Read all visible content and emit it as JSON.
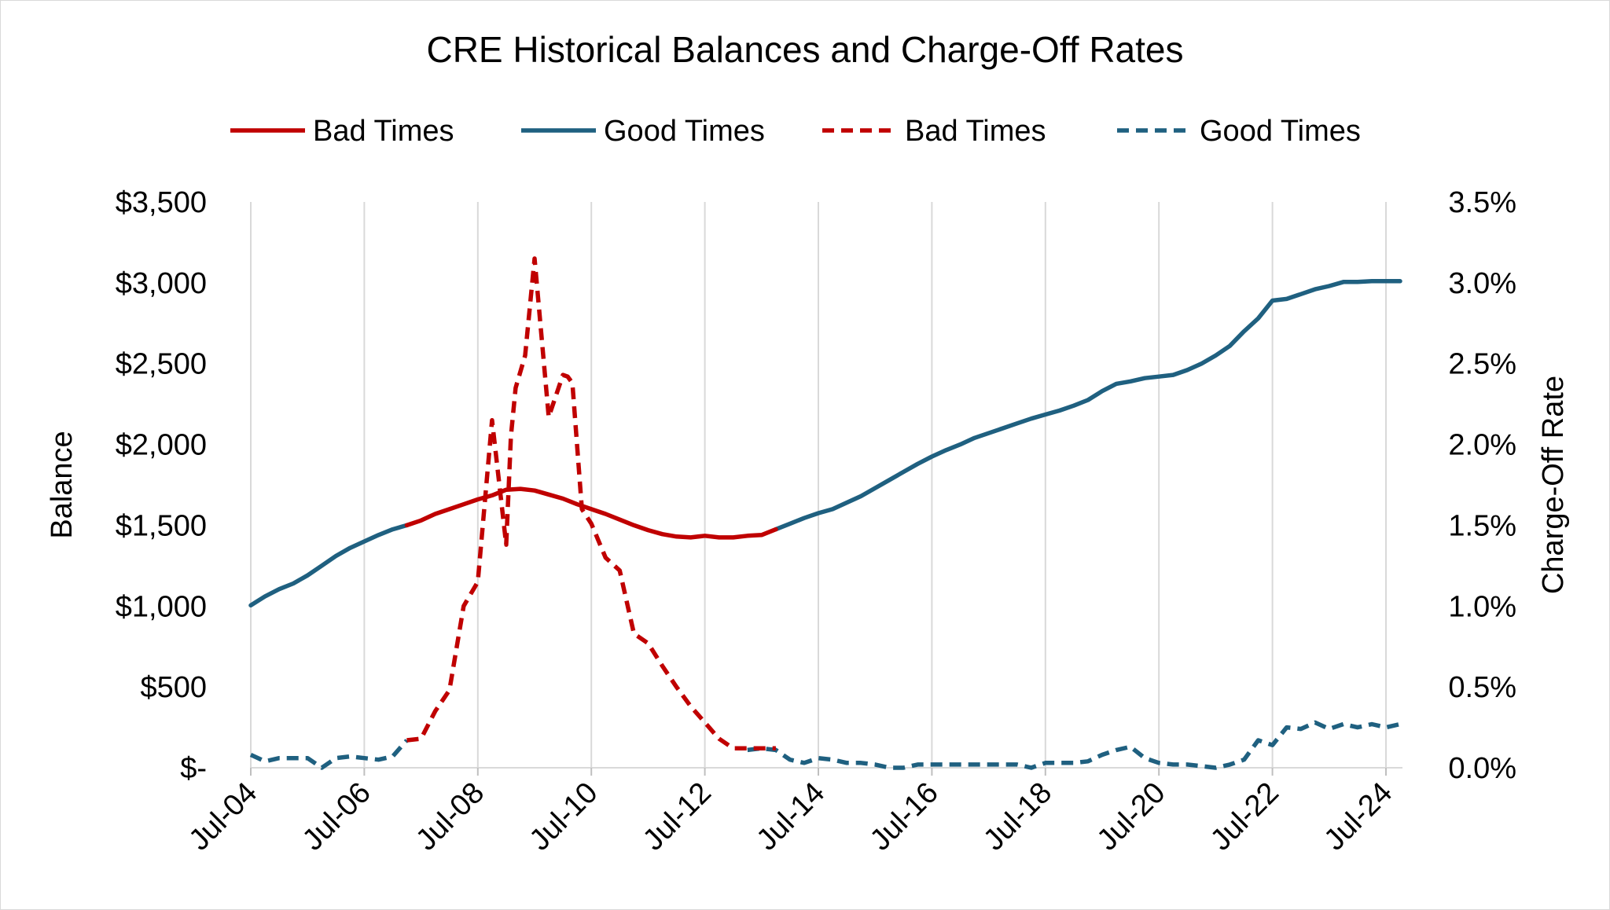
{
  "chart_data": {
    "type": "line",
    "title": "CRE Historical Balances and Charge-Off Rates",
    "ylabel_left": "Balance",
    "ylabel_right": "Charge-Off Rate",
    "xlabel": "",
    "x_tick_labels": [
      "Jul-04",
      "Jul-06",
      "Jul-08",
      "Jul-10",
      "Jul-12",
      "Jul-14",
      "Jul-16",
      "Jul-18",
      "Jul-20",
      "Jul-22",
      "Jul-24"
    ],
    "x_range": [
      "2004-07",
      "2024-10"
    ],
    "y_left_range": [
      0,
      3500
    ],
    "y_left_tick_labels": [
      "$-",
      "$500",
      "$1,000",
      "$1,500",
      "$2,000",
      "$2,500",
      "$3,000",
      "$3,500"
    ],
    "y_right_range": [
      0,
      3.5
    ],
    "y_right_tick_labels": [
      "0.0%",
      "0.5%",
      "1.0%",
      "1.5%",
      "2.0%",
      "2.5%",
      "3.0%",
      "3.5%"
    ],
    "grid": "vertical",
    "legend_position": "top",
    "colors": {
      "bad": "#c00000",
      "good": "#1f6080"
    },
    "series": [
      {
        "name": "Bad Times",
        "axis": "left",
        "style": "solid",
        "color": "#c00000",
        "x": [
          "2007-04",
          "2007-07",
          "2007-10",
          "2008-01",
          "2008-04",
          "2008-07",
          "2008-10",
          "2009-01",
          "2009-04",
          "2009-07",
          "2009-10",
          "2010-01",
          "2010-04",
          "2010-07",
          "2010-10",
          "2011-01",
          "2011-04",
          "2011-07",
          "2011-10",
          "2012-01",
          "2012-04",
          "2012-07",
          "2012-10",
          "2013-01",
          "2013-04",
          "2013-07",
          "2013-10"
        ],
        "values": [
          1500,
          1530,
          1570,
          1600,
          1630,
          1660,
          1685,
          1720,
          1725,
          1715,
          1690,
          1665,
          1630,
          1600,
          1570,
          1535,
          1500,
          1470,
          1445,
          1430,
          1425,
          1435,
          1425,
          1425,
          1435,
          1440,
          1475
        ]
      },
      {
        "name": "Good Times",
        "axis": "left",
        "style": "solid",
        "color": "#1f6080",
        "x": [
          "2004-07",
          "2004-10",
          "2005-01",
          "2005-04",
          "2005-07",
          "2005-10",
          "2006-01",
          "2006-04",
          "2006-07",
          "2006-10",
          "2007-01",
          "2007-04",
          null,
          "2013-10",
          "2014-01",
          "2014-04",
          "2014-07",
          "2014-10",
          "2015-01",
          "2015-04",
          "2015-07",
          "2015-10",
          "2016-01",
          "2016-04",
          "2016-07",
          "2016-10",
          "2017-01",
          "2017-04",
          "2017-07",
          "2017-10",
          "2018-01",
          "2018-04",
          "2018-07",
          "2018-10",
          "2019-01",
          "2019-04",
          "2019-07",
          "2019-10",
          "2020-01",
          "2020-04",
          "2020-07",
          "2020-10",
          "2021-01",
          "2021-04",
          "2021-07",
          "2021-10",
          "2022-01",
          "2022-04",
          "2022-07",
          "2022-10",
          "2023-01",
          "2023-04",
          "2023-07",
          "2023-10",
          "2024-01",
          "2024-04",
          "2024-07",
          "2024-10"
        ],
        "values": [
          1005,
          1060,
          1105,
          1140,
          1190,
          1250,
          1310,
          1360,
          1400,
          1440,
          1475,
          1500,
          null,
          1475,
          1510,
          1545,
          1575,
          1600,
          1640,
          1680,
          1730,
          1780,
          1830,
          1880,
          1925,
          1965,
          2000,
          2040,
          2070,
          2100,
          2130,
          2160,
          2185,
          2210,
          2240,
          2275,
          2330,
          2375,
          2390,
          2410,
          2420,
          2430,
          2460,
          2500,
          2550,
          2610,
          2700,
          2780,
          2890,
          2900,
          2930,
          2960,
          2980,
          3005,
          3005,
          3010,
          3010,
          3010
        ]
      },
      {
        "name": "Bad Times",
        "axis": "right",
        "style": "dashed",
        "color": "#c00000",
        "x": [
          "2007-04",
          "2007-07",
          "2007-10",
          "2008-01",
          "2008-04",
          "2008-07",
          "2008-10",
          "2009-01",
          "2009-02",
          "2009-03",
          "2009-05",
          "2009-07",
          "2009-10",
          "2010-01",
          "2010-02",
          "2010-03",
          "2010-05",
          "2010-07",
          "2010-10",
          "2011-01",
          "2011-04",
          "2011-07",
          "2011-10",
          "2012-01",
          "2012-04",
          "2012-07",
          "2012-10",
          "2013-01",
          "2013-04",
          "2013-07",
          "2013-10"
        ],
        "values": [
          0.17,
          0.18,
          0.35,
          0.48,
          1.0,
          1.15,
          2.15,
          1.38,
          2.05,
          2.35,
          2.55,
          3.15,
          2.17,
          2.43,
          2.42,
          2.38,
          1.6,
          1.51,
          1.3,
          1.22,
          0.83,
          0.77,
          0.63,
          0.5,
          0.38,
          0.28,
          0.18,
          0.12,
          0.12,
          0.12,
          0.12
        ]
      },
      {
        "name": "Good Times",
        "axis": "right",
        "style": "dashed",
        "color": "#1f6080",
        "x": [
          "2004-07",
          "2004-10",
          "2005-01",
          "2005-04",
          "2005-07",
          "2005-10",
          "2006-01",
          "2006-04",
          "2006-07",
          "2006-10",
          "2007-01",
          "2007-04",
          null,
          "2013-04",
          "2013-07",
          "2013-10",
          "2014-01",
          "2014-04",
          "2014-07",
          "2014-10",
          "2015-01",
          "2015-04",
          "2015-07",
          "2015-10",
          "2016-01",
          "2016-04",
          "2016-07",
          "2016-10",
          "2017-01",
          "2017-04",
          "2017-07",
          "2017-10",
          "2018-01",
          "2018-04",
          "2018-07",
          "2018-10",
          "2019-01",
          "2019-04",
          "2019-07",
          "2019-10",
          "2020-01",
          "2020-04",
          "2020-07",
          "2020-10",
          "2021-01",
          "2021-04",
          "2021-07",
          "2021-10",
          "2022-01",
          "2022-04",
          "2022-07",
          "2022-10",
          "2023-01",
          "2023-04",
          "2023-07",
          "2023-10",
          "2024-01",
          "2024-04",
          "2024-07",
          "2024-10"
        ],
        "values": [
          0.08,
          0.04,
          0.06,
          0.06,
          0.06,
          0.0,
          0.06,
          0.07,
          0.06,
          0.05,
          0.07,
          0.17,
          null,
          0.11,
          0.12,
          0.11,
          0.05,
          0.03,
          0.06,
          0.05,
          0.03,
          0.03,
          0.02,
          0.0,
          0.0,
          0.02,
          0.02,
          0.02,
          0.02,
          0.02,
          0.02,
          0.02,
          0.02,
          0.0,
          0.03,
          0.03,
          0.03,
          0.04,
          0.08,
          0.11,
          0.13,
          0.06,
          0.03,
          0.02,
          0.02,
          0.01,
          0.0,
          0.02,
          0.05,
          0.17,
          0.14,
          0.25,
          0.24,
          0.28,
          0.24,
          0.27,
          0.25,
          0.27,
          0.25,
          0.27
        ]
      }
    ]
  }
}
